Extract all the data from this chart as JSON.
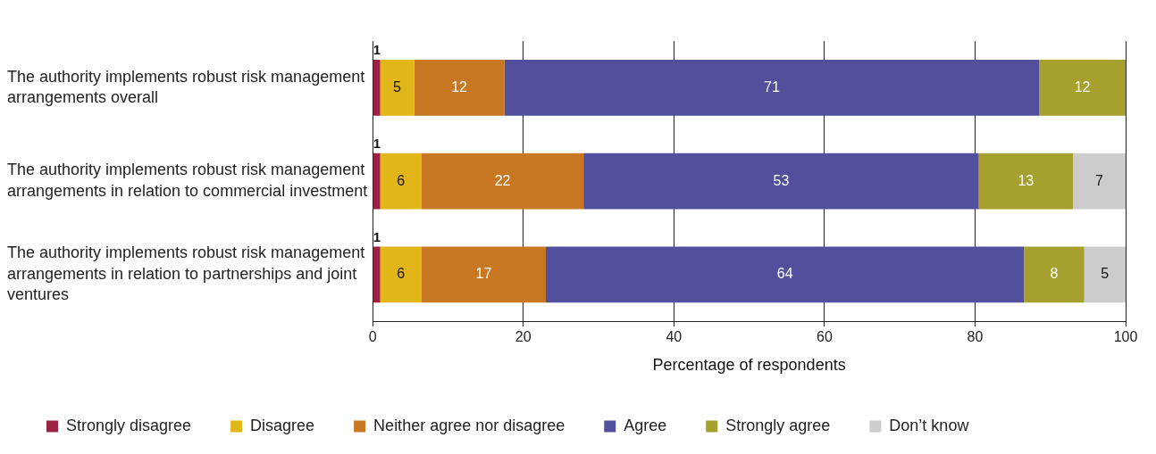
{
  "chart_data": {
    "type": "bar",
    "orientation": "horizontal",
    "stacked": true,
    "xlabel": "Percentage of respondents",
    "categories": [
      "The authority implements robust risk management arrangements overall",
      "The authority implements robust risk management arrangements in relation to commercial investment",
      "The authority implements robust risk management arrangements in relation to partnerships and joint ventures"
    ],
    "series": [
      {
        "name": "Strongly disagree",
        "color": "#9b2242",
        "values": [
          1,
          1,
          1
        ],
        "value_labels": [
          "1",
          "1",
          "1"
        ]
      },
      {
        "name": "Disagree",
        "color": "#e0b619",
        "values": [
          4.5,
          5.5,
          5.5
        ],
        "value_labels": [
          "5",
          "6",
          "6"
        ]
      },
      {
        "name": "Neither agree nor disagree",
        "color": "#c87722",
        "values": [
          12,
          21.5,
          16.5
        ],
        "value_labels": [
          "12",
          "22",
          "17"
        ]
      },
      {
        "name": "Agree",
        "color": "#524f9c",
        "values": [
          71,
          52.5,
          63.5
        ],
        "value_labels": [
          "71",
          "53",
          "64"
        ]
      },
      {
        "name": "Strongly agree",
        "color": "#a6a12e",
        "values": [
          11.5,
          12.5,
          8
        ],
        "value_labels": [
          "12",
          "13",
          "8"
        ]
      },
      {
        "name": "Don’t know",
        "color": "#cccccc",
        "values": [
          null,
          7,
          5.5
        ],
        "value_labels": [
          null,
          "7",
          "5"
        ]
      }
    ],
    "xlim": [
      0,
      100
    ],
    "xticks": [
      0,
      20,
      40,
      60,
      80,
      100
    ],
    "grid": "x",
    "legend": "bottom"
  }
}
